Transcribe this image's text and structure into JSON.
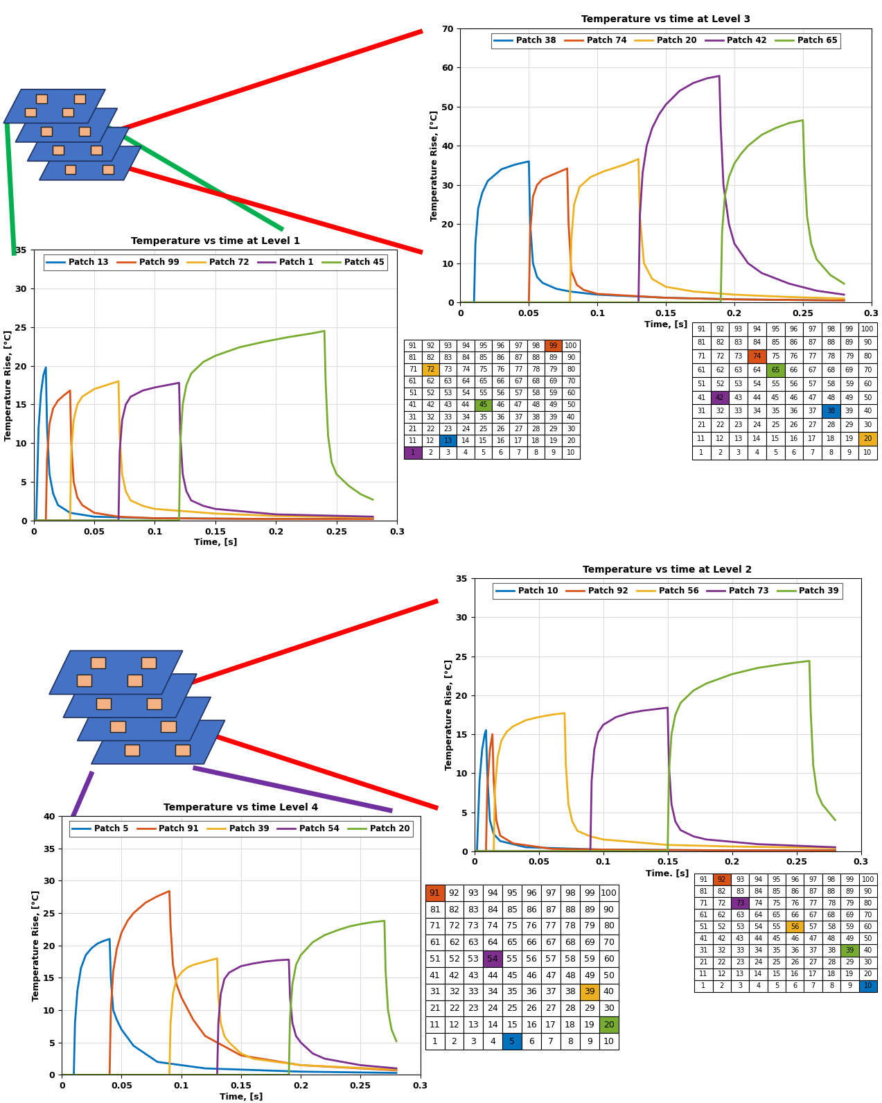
{
  "chart_data": [
    {
      "type": "line",
      "title": "Temperature vs time at Level 3",
      "x_label": "Time, [s]",
      "y_label": "Temperature Rise, [°C]",
      "xlim": [
        0,
        0.3
      ],
      "xticks": [
        0,
        0.05,
        0.1,
        0.15,
        0.2,
        0.25,
        0.3
      ],
      "ylim": [
        0,
        70
      ],
      "yticks": [
        0,
        10,
        20,
        30,
        40,
        50,
        60,
        70
      ],
      "grid": true,
      "legend": "upper center",
      "series": [
        {
          "name": "Patch 38",
          "color": "#0072bd",
          "x": [
            0,
            0.01,
            0.011,
            0.013,
            0.016,
            0.02,
            0.03,
            0.04,
            0.05,
            0.051,
            0.053,
            0.056,
            0.06,
            0.07,
            0.08,
            0.1,
            0.15,
            0.2,
            0.28
          ],
          "values": [
            0,
            0,
            15,
            24,
            28,
            31,
            34,
            35.2,
            36,
            20,
            10,
            6.5,
            5,
            3.5,
            2.8,
            2,
            1.2,
            0.8,
            0.5
          ]
        },
        {
          "name": "Patch 74",
          "color": "#d95319",
          "x": [
            0,
            0.05,
            0.051,
            0.053,
            0.056,
            0.06,
            0.07,
            0.078,
            0.079,
            0.081,
            0.085,
            0.09,
            0.1,
            0.15,
            0.2,
            0.28
          ],
          "values": [
            0,
            0,
            18,
            27,
            30,
            31.5,
            33,
            34.2,
            20,
            8,
            4.5,
            3.2,
            2.2,
            1.2,
            0.8,
            0.5
          ]
        },
        {
          "name": "Patch 20",
          "color": "#edb120",
          "x": [
            0,
            0.08,
            0.081,
            0.083,
            0.087,
            0.095,
            0.105,
            0.12,
            0.13,
            0.131,
            0.134,
            0.14,
            0.15,
            0.17,
            0.2,
            0.24,
            0.28
          ],
          "values": [
            0,
            0,
            16,
            25,
            29.5,
            32,
            33.5,
            35.2,
            36.6,
            22,
            10,
            6,
            4,
            2.8,
            2,
            1.4,
            1
          ]
        },
        {
          "name": "Patch 42",
          "color": "#7e2f8e",
          "x": [
            0,
            0.13,
            0.131,
            0.133,
            0.136,
            0.14,
            0.145,
            0.15,
            0.16,
            0.17,
            0.18,
            0.189,
            0.19,
            0.192,
            0.196,
            0.2,
            0.21,
            0.22,
            0.24,
            0.26,
            0.28
          ],
          "values": [
            0,
            0,
            22,
            33,
            40,
            44.5,
            48,
            50.5,
            54,
            56,
            57.2,
            57.8,
            45,
            30,
            20,
            15,
            10,
            7.5,
            4.8,
            3,
            2
          ]
        },
        {
          "name": "Patch 65",
          "color": "#77ac30",
          "x": [
            0,
            0.19,
            0.191,
            0.193,
            0.196,
            0.2,
            0.205,
            0.21,
            0.22,
            0.23,
            0.24,
            0.25,
            0.251,
            0.253,
            0.256,
            0.26,
            0.27,
            0.28
          ],
          "values": [
            0,
            0,
            18,
            27,
            32,
            35.5,
            38,
            40,
            42.8,
            44.5,
            45.8,
            46.5,
            35,
            22,
            15,
            11,
            7,
            4.8
          ]
        }
      ]
    },
    {
      "type": "line",
      "title": "Temperature vs time at Level 1",
      "x_label": "Time, [s]",
      "y_label": "Temperature Rise, [°C]",
      "xlim": [
        0,
        0.3
      ],
      "xticks": [
        0,
        0.05,
        0.1,
        0.15,
        0.2,
        0.25,
        0.3
      ],
      "ylim": [
        0,
        35
      ],
      "yticks": [
        0,
        5,
        10,
        15,
        20,
        25,
        30,
        35
      ],
      "grid": true,
      "legend": "upper center",
      "series": [
        {
          "name": "Patch 13",
          "color": "#0072bd",
          "x": [
            0,
            0.002,
            0.004,
            0.006,
            0.008,
            0.01,
            0.011,
            0.013,
            0.016,
            0.02,
            0.03,
            0.05,
            0.1,
            0.2,
            0.28
          ],
          "values": [
            0,
            0,
            12,
            16.5,
            18.8,
            19.8,
            12,
            6,
            3.5,
            2,
            1,
            0.5,
            0.3,
            0.2,
            0.2
          ]
        },
        {
          "name": "Patch 99",
          "color": "#d95319",
          "x": [
            0,
            0.01,
            0.011,
            0.013,
            0.016,
            0.02,
            0.025,
            0.03,
            0.031,
            0.033,
            0.036,
            0.04,
            0.05,
            0.07,
            0.1,
            0.2,
            0.28
          ],
          "values": [
            0,
            0,
            8,
            12.5,
            14.5,
            15.5,
            16.2,
            16.8,
            10,
            5,
            3,
            2,
            1,
            0.5,
            0.3,
            0.2,
            0.2
          ]
        },
        {
          "name": "Patch 72",
          "color": "#edb120",
          "x": [
            0,
            0.03,
            0.031,
            0.033,
            0.036,
            0.04,
            0.05,
            0.06,
            0.07,
            0.071,
            0.073,
            0.076,
            0.08,
            0.09,
            0.1,
            0.15,
            0.2,
            0.28
          ],
          "values": [
            0,
            0,
            9,
            13,
            15,
            16,
            17,
            17.5,
            18,
            11,
            6,
            3.8,
            2.6,
            1.9,
            1.5,
            0.9,
            0.6,
            0.4
          ]
        },
        {
          "name": "Patch 1",
          "color": "#7e2f8e",
          "x": [
            0,
            0.07,
            0.071,
            0.073,
            0.076,
            0.08,
            0.09,
            0.1,
            0.11,
            0.12,
            0.121,
            0.123,
            0.126,
            0.13,
            0.14,
            0.15,
            0.2,
            0.28
          ],
          "values": [
            0,
            0,
            9,
            13,
            15,
            16,
            16.8,
            17.2,
            17.5,
            17.8,
            11,
            6,
            3.8,
            2.6,
            1.9,
            1.5,
            0.8,
            0.5
          ]
        },
        {
          "name": "Patch 45",
          "color": "#77ac30",
          "x": [
            0,
            0.12,
            0.121,
            0.123,
            0.126,
            0.13,
            0.14,
            0.15,
            0.17,
            0.19,
            0.21,
            0.23,
            0.24,
            0.241,
            0.243,
            0.246,
            0.25,
            0.26,
            0.27,
            0.28
          ],
          "values": [
            0,
            0,
            10,
            15,
            17.5,
            19,
            20.5,
            21.3,
            22.4,
            23.1,
            23.7,
            24.2,
            24.5,
            18,
            11,
            7.5,
            6,
            4.5,
            3.4,
            2.7
          ]
        }
      ]
    },
    {
      "type": "line",
      "title": "Temperature vs time at Level 2",
      "x_label": "Time. [s]",
      "y_label": "Temperature Rise, [°C]",
      "xlim": [
        0,
        0.3
      ],
      "xticks": [
        0,
        0.05,
        0.1,
        0.15,
        0.2,
        0.25,
        0.3
      ],
      "ylim": [
        0,
        35
      ],
      "yticks": [
        0,
        5,
        10,
        15,
        20,
        25,
        30,
        35
      ],
      "grid": true,
      "legend": "upper center",
      "series": [
        {
          "name": "Patch 10",
          "color": "#0072bd",
          "x": [
            0,
            0.002,
            0.004,
            0.006,
            0.008,
            0.009,
            0.01,
            0.012,
            0.015,
            0.02,
            0.04,
            0.1,
            0.2,
            0.28
          ],
          "values": [
            0,
            0,
            9,
            13,
            15,
            15.5,
            10,
            4,
            2.2,
            1.3,
            0.5,
            0.2,
            0.1,
            0.1
          ]
        },
        {
          "name": "Patch 92",
          "color": "#d95319",
          "x": [
            0,
            0.009,
            0.01,
            0.012,
            0.014,
            0.015,
            0.017,
            0.02,
            0.03,
            0.06,
            0.1,
            0.2,
            0.28
          ],
          "values": [
            0,
            0,
            8,
            13,
            15,
            9,
            4,
            2,
            1,
            0.3,
            0.2,
            0.1,
            0.1
          ]
        },
        {
          "name": "Patch 56",
          "color": "#edb120",
          "x": [
            0,
            0.015,
            0.016,
            0.018,
            0.021,
            0.025,
            0.03,
            0.04,
            0.05,
            0.06,
            0.07,
            0.071,
            0.073,
            0.076,
            0.08,
            0.09,
            0.1,
            0.15,
            0.2,
            0.28
          ],
          "values": [
            0,
            0,
            8,
            12,
            14.2,
            15.3,
            16,
            16.8,
            17.2,
            17.5,
            17.7,
            11,
            6,
            3.8,
            2.6,
            1.9,
            1.5,
            0.8,
            0.6,
            0.4
          ]
        },
        {
          "name": "Patch 73",
          "color": "#7e2f8e",
          "x": [
            0,
            0.09,
            0.091,
            0.093,
            0.096,
            0.1,
            0.11,
            0.12,
            0.13,
            0.14,
            0.15,
            0.151,
            0.153,
            0.156,
            0.16,
            0.17,
            0.18,
            0.22,
            0.28
          ],
          "values": [
            0,
            0,
            9,
            13,
            15.2,
            16.2,
            17.2,
            17.7,
            18,
            18.2,
            18.4,
            11,
            6,
            3.8,
            2.7,
            1.9,
            1.5,
            0.9,
            0.5
          ]
        },
        {
          "name": "Patch 39",
          "color": "#77ac30",
          "x": [
            0,
            0.15,
            0.151,
            0.153,
            0.156,
            0.16,
            0.17,
            0.18,
            0.2,
            0.22,
            0.24,
            0.26,
            0.261,
            0.263,
            0.266,
            0.27,
            0.28
          ],
          "values": [
            0,
            0,
            10,
            15,
            17.5,
            19,
            20.6,
            21.5,
            22.7,
            23.5,
            24,
            24.4,
            18,
            11,
            7.5,
            6,
            4
          ]
        }
      ]
    },
    {
      "type": "line",
      "title": "Temperature vs time Level 4",
      "x_label": "Time, [s]",
      "y_label": "Temperature Rise, [°C]",
      "xlim": [
        0,
        0.3
      ],
      "xticks": [
        0,
        0.05,
        0.1,
        0.15,
        0.2,
        0.25,
        0.3
      ],
      "ylim": [
        0,
        40
      ],
      "yticks": [
        0,
        5,
        10,
        15,
        20,
        25,
        30,
        35,
        40
      ],
      "grid": true,
      "legend": "upper center",
      "series": [
        {
          "name": "Patch 5",
          "color": "#0072bd",
          "x": [
            0,
            0.01,
            0.011,
            0.013,
            0.016,
            0.02,
            0.025,
            0.03,
            0.035,
            0.04,
            0.041,
            0.043,
            0.046,
            0.05,
            0.06,
            0.08,
            0.12,
            0.2,
            0.28
          ],
          "values": [
            0,
            0,
            8,
            13,
            16.5,
            18.5,
            19.6,
            20.3,
            20.7,
            21,
            15,
            10,
            8.5,
            7,
            4.5,
            2,
            1,
            0.5,
            0.3
          ]
        },
        {
          "name": "Patch 91",
          "color": "#d95319",
          "x": [
            0,
            0.04,
            0.041,
            0.043,
            0.046,
            0.05,
            0.055,
            0.06,
            0.07,
            0.08,
            0.09,
            0.091,
            0.093,
            0.096,
            0.1,
            0.11,
            0.12,
            0.15,
            0.2,
            0.28
          ],
          "values": [
            0,
            0,
            10,
            16,
            19.5,
            22,
            23.8,
            25,
            26.6,
            27.6,
            28.4,
            23,
            17,
            14,
            12,
            8.5,
            6,
            3,
            1.5,
            0.7
          ]
        },
        {
          "name": "Patch 39",
          "color": "#edb120",
          "x": [
            0,
            0.09,
            0.091,
            0.093,
            0.096,
            0.1,
            0.105,
            0.11,
            0.12,
            0.13,
            0.131,
            0.133,
            0.136,
            0.14,
            0.15,
            0.16,
            0.2,
            0.28
          ],
          "values": [
            0,
            0,
            8,
            12.5,
            14.8,
            15.8,
            16.6,
            17,
            17.5,
            18,
            12,
            8,
            6,
            5,
            3.3,
            2.5,
            1.5,
            0.8
          ]
        },
        {
          "name": "Patch 54",
          "color": "#7e2f8e",
          "x": [
            0,
            0.13,
            0.131,
            0.133,
            0.136,
            0.14,
            0.15,
            0.16,
            0.17,
            0.18,
            0.19,
            0.191,
            0.193,
            0.196,
            0.2,
            0.21,
            0.22,
            0.25,
            0.28
          ],
          "values": [
            0,
            0,
            8,
            12.5,
            14.8,
            15.8,
            16.8,
            17.2,
            17.5,
            17.7,
            17.8,
            12,
            8,
            6,
            5,
            3.3,
            2.5,
            1.5,
            1
          ]
        },
        {
          "name": "Patch 20",
          "color": "#77ac30",
          "x": [
            0,
            0.19,
            0.191,
            0.193,
            0.196,
            0.2,
            0.205,
            0.21,
            0.22,
            0.23,
            0.24,
            0.25,
            0.26,
            0.27,
            0.271,
            0.273,
            0.276,
            0.28
          ],
          "values": [
            0,
            0,
            9,
            14,
            17,
            18.5,
            19.5,
            20.5,
            21.6,
            22.3,
            22.9,
            23.3,
            23.6,
            23.8,
            16,
            10,
            7,
            5.2
          ]
        }
      ]
    }
  ],
  "patch_table": {
    "rows": [
      [
        91,
        92,
        93,
        94,
        95,
        96,
        97,
        98,
        99,
        100
      ],
      [
        81,
        82,
        83,
        84,
        85,
        86,
        87,
        88,
        89,
        90
      ],
      [
        71,
        72,
        73,
        74,
        75,
        76,
        77,
        78,
        79,
        80
      ],
      [
        61,
        62,
        63,
        64,
        65,
        66,
        67,
        68,
        69,
        70
      ],
      [
        51,
        52,
        53,
        54,
        55,
        56,
        57,
        58,
        59,
        60
      ],
      [
        41,
        42,
        43,
        44,
        45,
        46,
        47,
        48,
        49,
        50
      ],
      [
        31,
        32,
        33,
        34,
        35,
        36,
        37,
        38,
        39,
        40
      ],
      [
        21,
        22,
        23,
        24,
        25,
        26,
        27,
        28,
        29,
        30
      ],
      [
        11,
        12,
        13,
        14,
        15,
        16,
        17,
        18,
        19,
        20
      ],
      [
        1,
        2,
        3,
        4,
        5,
        6,
        7,
        8,
        9,
        10
      ]
    ]
  }
}
